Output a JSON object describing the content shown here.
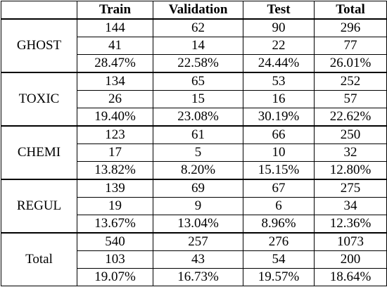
{
  "table": {
    "header": {
      "corner": "",
      "columns": [
        "Train",
        "Validation",
        "Test",
        "Total"
      ]
    },
    "groups": [
      {
        "label": "GHOST",
        "rows": [
          [
            "144",
            "62",
            "90",
            "296"
          ],
          [
            "41",
            "14",
            "22",
            "77"
          ],
          [
            "28.47%",
            "22.58%",
            "24.44%",
            "26.01%"
          ]
        ]
      },
      {
        "label": "TOXIC",
        "rows": [
          [
            "134",
            "65",
            "53",
            "252"
          ],
          [
            "26",
            "15",
            "16",
            "57"
          ],
          [
            "19.40%",
            "23.08%",
            "30.19%",
            "22.62%"
          ]
        ]
      },
      {
        "label": "CHEMI",
        "rows": [
          [
            "123",
            "61",
            "66",
            "250"
          ],
          [
            "17",
            "5",
            "10",
            "32"
          ],
          [
            "13.82%",
            "8.20%",
            "15.15%",
            "12.80%"
          ]
        ]
      },
      {
        "label": "REGUL",
        "rows": [
          [
            "139",
            "69",
            "67",
            "275"
          ],
          [
            "19",
            "9",
            "6",
            "34"
          ],
          [
            "13.67%",
            "13.04%",
            "8.96%",
            "12.36%"
          ]
        ]
      },
      {
        "label": "Total",
        "rows": [
          [
            "540",
            "257",
            "276",
            "1073"
          ],
          [
            "103",
            "43",
            "54",
            "200"
          ],
          [
            "19.07%",
            "16.73%",
            "19.57%",
            "18.64%"
          ]
        ]
      }
    ]
  }
}
